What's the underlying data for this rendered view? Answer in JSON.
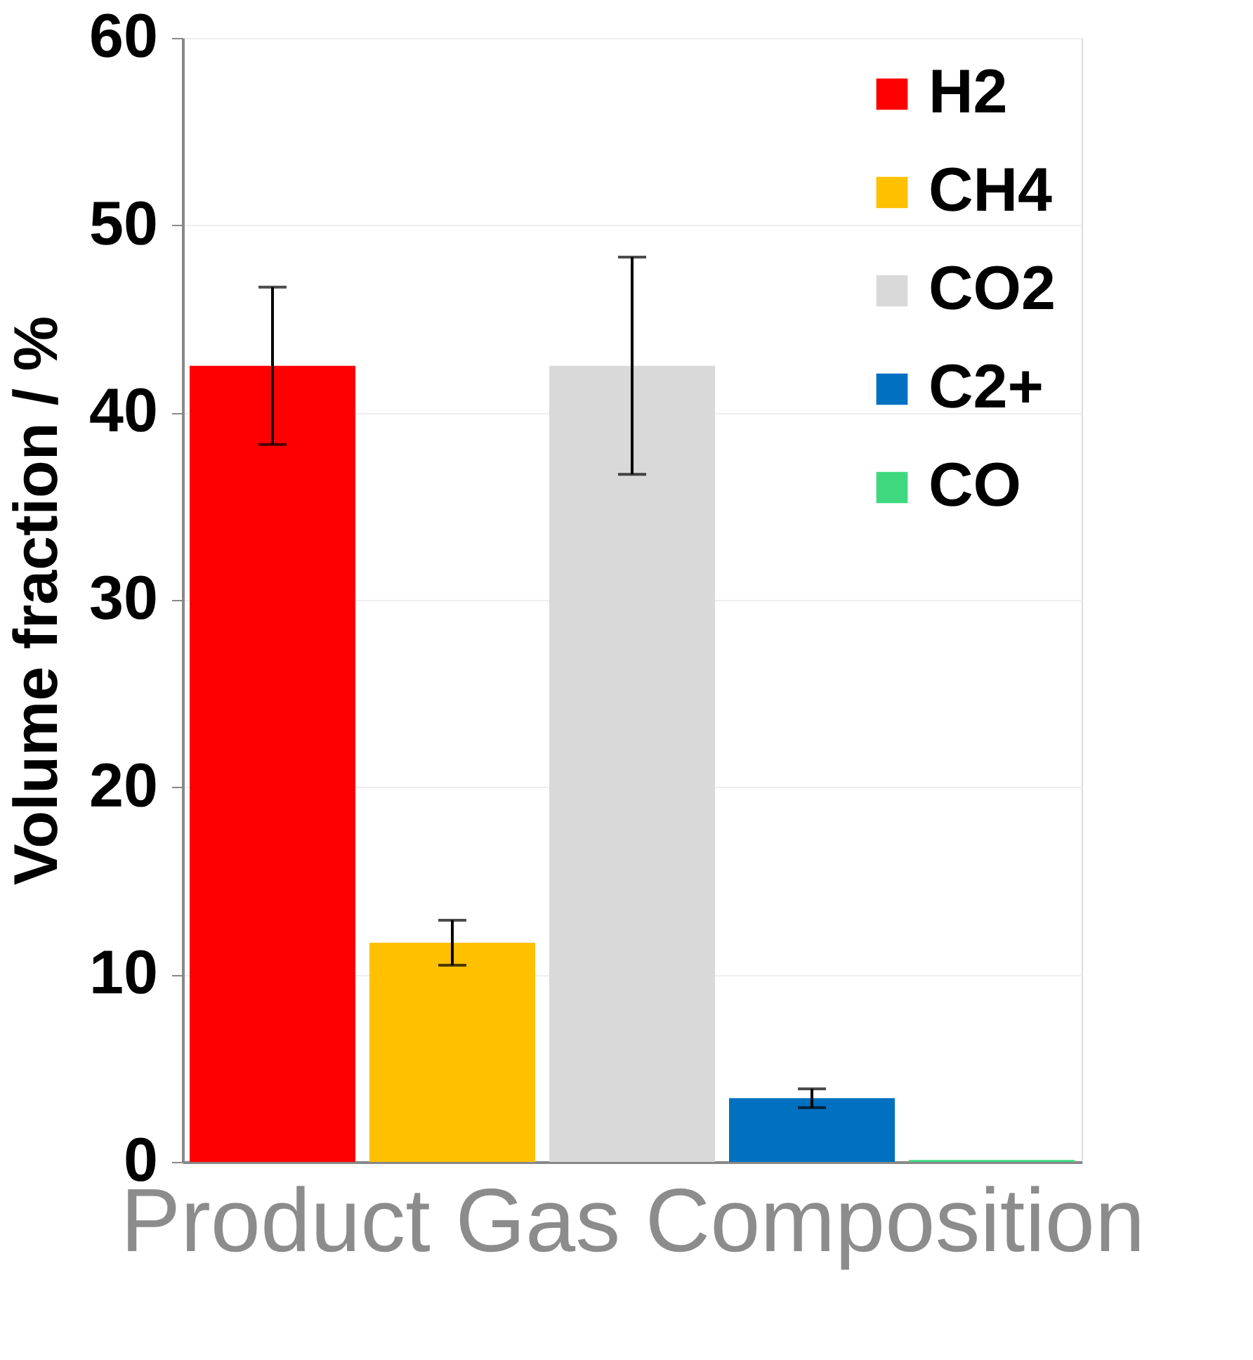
{
  "chart_data": {
    "type": "bar",
    "xlabel": "Product Gas Composition",
    "ylabel": "Volume fraction / %",
    "categories": [
      null
    ],
    "series": [
      {
        "name": "H2",
        "color": "#ff0000",
        "values": [
          42.5
        ],
        "errors": [
          [
            38.3,
            46.7
          ]
        ]
      },
      {
        "name": "CH4",
        "color": "#ffc000",
        "values": [
          11.7
        ],
        "errors": [
          [
            10.5,
            12.9
          ]
        ]
      },
      {
        "name": "CO2",
        "color": "#d9d9d9",
        "values": [
          42.5
        ],
        "errors": [
          [
            36.7,
            48.3
          ]
        ]
      },
      {
        "name": "C2+",
        "color": "#0070c0",
        "values": [
          3.4
        ],
        "errors": [
          [
            2.9,
            3.9
          ]
        ]
      },
      {
        "name": "CO",
        "color": "#3fd87f",
        "values": [
          0.1
        ]
      }
    ],
    "ylim": [
      0,
      60
    ],
    "yticks": [
      0,
      10,
      20,
      30,
      40,
      50,
      60
    ],
    "grid": "y",
    "legend": "top right"
  }
}
